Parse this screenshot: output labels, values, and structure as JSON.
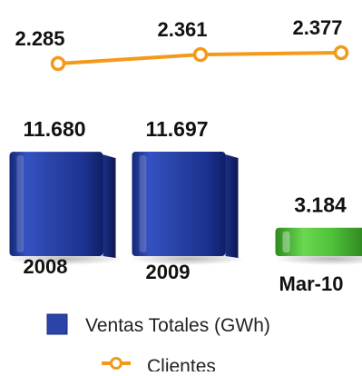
{
  "chart_data": {
    "type": "bar",
    "categories": [
      "2008",
      "2009",
      "Mar-10"
    ],
    "series": [
      {
        "name": "Ventas Totales (GWh)",
        "kind": "bar",
        "values": [
          11680,
          11697,
          3184
        ],
        "labels": [
          "11.680",
          "11.697",
          "3.184"
        ],
        "colors": [
          "#2a44a8",
          "#2a44a8",
          "#4fc23a"
        ]
      },
      {
        "name": "Clientes",
        "kind": "line",
        "values": [
          2285,
          2361,
          2377
        ],
        "labels": [
          "2.285",
          "2.361",
          "2.377"
        ],
        "color": "#f29a1b"
      }
    ],
    "legend_position": "bottom",
    "grid": false
  }
}
